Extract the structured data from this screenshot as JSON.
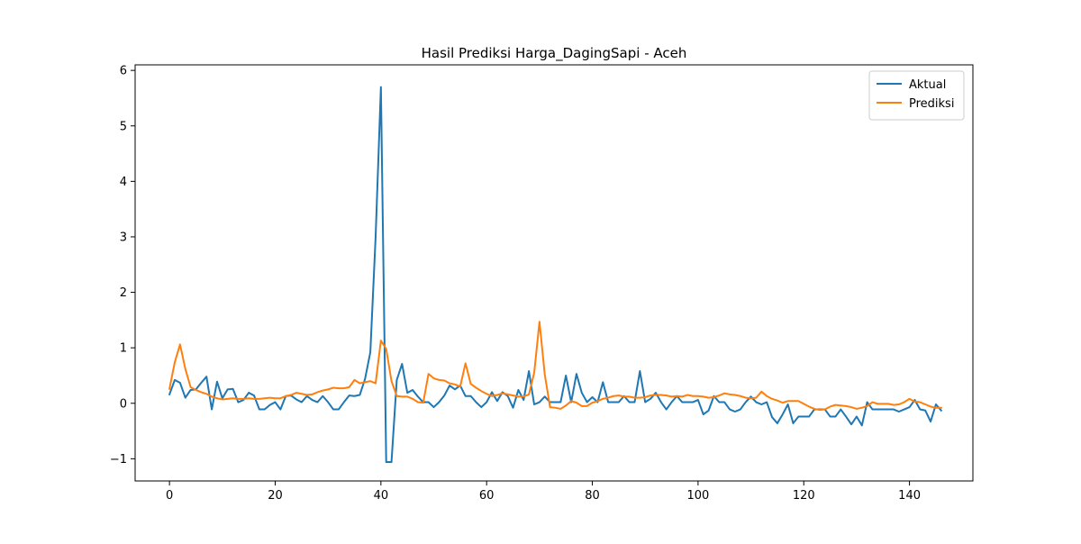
{
  "chart_data": {
    "type": "line",
    "title": "Hasil Prediksi Harga_DagingSapi - Aceh",
    "xlabel": "",
    "ylabel": "",
    "xlim": [
      -6.5,
      152
    ],
    "ylim": [
      -1.4,
      6.1
    ],
    "x_ticks": [
      0,
      20,
      40,
      60,
      80,
      100,
      120,
      140
    ],
    "x_tick_labels": [
      "0",
      "20",
      "40",
      "60",
      "80",
      "100",
      "120",
      "140"
    ],
    "y_ticks": [
      -1,
      0,
      1,
      2,
      3,
      4,
      5,
      6
    ],
    "y_tick_labels": [
      "−1",
      "0",
      "1",
      "2",
      "3",
      "4",
      "5",
      "6"
    ],
    "grid": false,
    "legend_position": "upper right",
    "series": [
      {
        "name": "Aktual",
        "color": "#1f77b4",
        "values": [
          0.16,
          0.42,
          0.37,
          0.1,
          0.24,
          0.25,
          0.37,
          0.48,
          -0.11,
          0.39,
          0.09,
          0.25,
          0.26,
          0.02,
          0.06,
          0.19,
          0.14,
          -0.11,
          -0.11,
          -0.03,
          0.02,
          -0.11,
          0.13,
          0.14,
          0.07,
          0.02,
          0.13,
          0.06,
          0.02,
          0.13,
          0.02,
          -0.11,
          -0.11,
          0.02,
          0.14,
          0.13,
          0.15,
          0.44,
          0.92,
          3.0,
          5.7,
          -1.06,
          -1.06,
          0.42,
          0.71,
          0.19,
          0.24,
          0.12,
          0.02,
          0.02,
          -0.07,
          0.02,
          0.14,
          0.32,
          0.25,
          0.32,
          0.13,
          0.13,
          0.02,
          -0.07,
          0.02,
          0.2,
          0.04,
          0.2,
          0.13,
          -0.08,
          0.24,
          0.06,
          0.58,
          -0.02,
          0.02,
          0.12,
          0.02,
          0.02,
          0.02,
          0.5,
          0.02,
          0.53,
          0.19,
          0.02,
          0.11,
          0.02,
          0.38,
          0.02,
          0.02,
          0.02,
          0.13,
          0.02,
          0.02,
          0.58,
          0.02,
          0.08,
          0.19,
          0.02,
          -0.11,
          0.02,
          0.13,
          0.02,
          0.02,
          0.02,
          0.06,
          -0.2,
          -0.13,
          0.13,
          0.02,
          0.02,
          -0.11,
          -0.15,
          -0.11,
          0.02,
          0.12,
          0.02,
          -0.02,
          0.02,
          -0.25,
          -0.36,
          -0.2,
          -0.02,
          -0.36,
          -0.24,
          -0.24,
          -0.24,
          -0.11,
          -0.11,
          -0.11,
          -0.24,
          -0.24,
          -0.11,
          -0.24,
          -0.38,
          -0.24,
          -0.4,
          0.02,
          -0.11,
          -0.11,
          -0.11,
          -0.11,
          -0.11,
          -0.15,
          -0.11,
          -0.07,
          0.06,
          -0.11,
          -0.13,
          -0.33,
          -0.02,
          -0.13
        ]
      },
      {
        "name": "Prediksi",
        "color": "#ff7f0e",
        "values": [
          0.26,
          0.74,
          1.06,
          0.62,
          0.29,
          0.24,
          0.2,
          0.17,
          0.12,
          0.09,
          0.07,
          0.08,
          0.09,
          0.08,
          0.08,
          0.09,
          0.08,
          0.08,
          0.09,
          0.1,
          0.09,
          0.09,
          0.13,
          0.15,
          0.19,
          0.17,
          0.15,
          0.16,
          0.2,
          0.23,
          0.25,
          0.28,
          0.27,
          0.27,
          0.29,
          0.42,
          0.36,
          0.38,
          0.4,
          0.36,
          1.13,
          0.98,
          0.4,
          0.13,
          0.12,
          0.12,
          0.08,
          0.02,
          0.01,
          0.53,
          0.45,
          0.42,
          0.41,
          0.36,
          0.34,
          0.3,
          0.72,
          0.35,
          0.28,
          0.22,
          0.17,
          0.13,
          0.15,
          0.18,
          0.16,
          0.14,
          0.12,
          0.12,
          0.16,
          0.55,
          1.47,
          0.52,
          -0.07,
          -0.08,
          -0.1,
          -0.04,
          0.04,
          0.01,
          -0.05,
          -0.05,
          0.01,
          0.04,
          0.08,
          0.1,
          0.13,
          0.14,
          0.12,
          0.12,
          0.1,
          0.1,
          0.11,
          0.14,
          0.15,
          0.15,
          0.14,
          0.12,
          0.13,
          0.12,
          0.15,
          0.13,
          0.13,
          0.12,
          0.1,
          0.11,
          0.14,
          0.18,
          0.16,
          0.15,
          0.13,
          0.1,
          0.09,
          0.1,
          0.21,
          0.13,
          0.08,
          0.05,
          0.01,
          0.04,
          0.04,
          0.04,
          -0.01,
          -0.06,
          -0.1,
          -0.12,
          -0.11,
          -0.06,
          -0.03,
          -0.04,
          -0.05,
          -0.07,
          -0.1,
          -0.08,
          -0.05,
          0.02,
          -0.01,
          -0.01,
          -0.01,
          -0.03,
          -0.02,
          0.02,
          0.08,
          0.03,
          0.02,
          -0.02,
          -0.06,
          -0.08,
          -0.08
        ]
      }
    ]
  }
}
